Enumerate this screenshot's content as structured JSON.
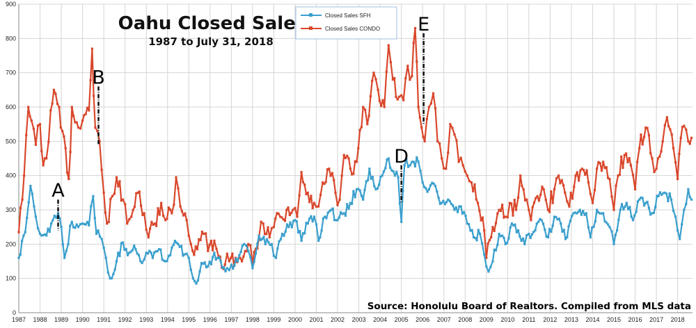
{
  "chart_data": {
    "type": "line",
    "title": "Oahu Closed Sales",
    "subtitle": "1987 to July 31, 2018",
    "source": "Source: Honolulu Board of Realtors. Compiled from MLS data",
    "ylim": [
      0,
      900
    ],
    "yticks": [
      "0",
      "100",
      "200",
      "300",
      "400",
      "500",
      "600",
      "700",
      "800",
      "900"
    ],
    "xlim": [
      1987,
      2018.7
    ],
    "xticks": [
      "1987",
      "1988",
      "1989",
      "1990",
      "1991",
      "1992",
      "1993",
      "1994",
      "1995",
      "1996",
      "1997",
      "1998",
      "1999",
      "2000",
      "2001",
      "2002",
      "2003",
      "2004",
      "2005",
      "2006",
      "2007",
      "2008",
      "2009",
      "2010",
      "2011",
      "2012",
      "2013",
      "2014",
      "2015",
      "2016",
      "2017",
      "2018"
    ],
    "grid": true,
    "legend_position": "top-center",
    "colors": {
      "sfh": "#3a9fcd",
      "condo": "#d9472b",
      "grid": "#d4d4d4"
    },
    "series": [
      {
        "name": "Closed Sales SFH",
        "color": "#3a9fcd",
        "anchors": [
          [
            1987.0,
            160
          ],
          [
            1987.3,
            235
          ],
          [
            1987.55,
            370
          ],
          [
            1987.8,
            280
          ],
          [
            1988.0,
            230
          ],
          [
            1988.3,
            225
          ],
          [
            1988.6,
            270
          ],
          [
            1988.85,
            290
          ],
          [
            1989.0,
            250
          ],
          [
            1989.15,
            160
          ],
          [
            1989.5,
            265
          ],
          [
            1989.8,
            250
          ],
          [
            1990.0,
            260
          ],
          [
            1990.3,
            255
          ],
          [
            1990.5,
            340
          ],
          [
            1990.65,
            230
          ],
          [
            1990.9,
            215
          ],
          [
            1991.1,
            160
          ],
          [
            1991.3,
            100
          ],
          [
            1991.6,
            150
          ],
          [
            1991.9,
            205
          ],
          [
            1992.2,
            175
          ],
          [
            1992.5,
            185
          ],
          [
            1992.8,
            145
          ],
          [
            1993.0,
            175
          ],
          [
            1993.3,
            160
          ],
          [
            1993.6,
            185
          ],
          [
            1993.9,
            150
          ],
          [
            1994.2,
            190
          ],
          [
            1994.5,
            200
          ],
          [
            1994.8,
            170
          ],
          [
            1995.0,
            160
          ],
          [
            1995.2,
            100
          ],
          [
            1995.35,
            85
          ],
          [
            1995.6,
            145
          ],
          [
            1995.9,
            135
          ],
          [
            1996.2,
            175
          ],
          [
            1996.5,
            150
          ],
          [
            1996.8,
            130
          ],
          [
            1997.0,
            140
          ],
          [
            1997.3,
            150
          ],
          [
            1997.6,
            200
          ],
          [
            1997.8,
            180
          ],
          [
            1998.0,
            130
          ],
          [
            1998.3,
            225
          ],
          [
            1998.6,
            200
          ],
          [
            1998.9,
            200
          ],
          [
            1999.1,
            160
          ],
          [
            1999.4,
            230
          ],
          [
            1999.7,
            250
          ],
          [
            2000.0,
            270
          ],
          [
            2000.3,
            210
          ],
          [
            2000.6,
            260
          ],
          [
            2000.9,
            280
          ],
          [
            2001.1,
            210
          ],
          [
            2001.4,
            280
          ],
          [
            2001.7,
            300
          ],
          [
            2002.0,
            270
          ],
          [
            2002.3,
            290
          ],
          [
            2002.6,
            320
          ],
          [
            2002.9,
            360
          ],
          [
            2003.2,
            330
          ],
          [
            2003.5,
            420
          ],
          [
            2003.8,
            360
          ],
          [
            2004.1,
            400
          ],
          [
            2004.4,
            450
          ],
          [
            2004.7,
            400
          ],
          [
            2004.85,
            395
          ],
          [
            2005.0,
            265
          ],
          [
            2005.15,
            430
          ],
          [
            2005.5,
            440
          ],
          [
            2005.8,
            440
          ],
          [
            2006.0,
            380
          ],
          [
            2006.3,
            360
          ],
          [
            2006.6,
            370
          ],
          [
            2006.9,
            320
          ],
          [
            2007.2,
            330
          ],
          [
            2007.5,
            300
          ],
          [
            2007.8,
            310
          ],
          [
            2008.1,
            260
          ],
          [
            2008.4,
            220
          ],
          [
            2008.7,
            230
          ],
          [
            2008.9,
            170
          ],
          [
            2009.1,
            120
          ],
          [
            2009.3,
            150
          ],
          [
            2009.6,
            230
          ],
          [
            2009.9,
            200
          ],
          [
            2010.2,
            260
          ],
          [
            2010.5,
            240
          ],
          [
            2010.8,
            200
          ],
          [
            2011.0,
            230
          ],
          [
            2011.3,
            240
          ],
          [
            2011.6,
            270
          ],
          [
            2011.9,
            220
          ],
          [
            2012.2,
            280
          ],
          [
            2012.5,
            260
          ],
          [
            2012.8,
            220
          ],
          [
            2013.1,
            290
          ],
          [
            2013.4,
            300
          ],
          [
            2013.7,
            290
          ],
          [
            2013.9,
            220
          ],
          [
            2014.2,
            300
          ],
          [
            2014.5,
            290
          ],
          [
            2014.8,
            250
          ],
          [
            2015.0,
            200
          ],
          [
            2015.3,
            300
          ],
          [
            2015.6,
            320
          ],
          [
            2015.9,
            270
          ],
          [
            2016.2,
            330
          ],
          [
            2016.5,
            320
          ],
          [
            2016.8,
            290
          ],
          [
            2017.1,
            340
          ],
          [
            2017.4,
            350
          ],
          [
            2017.7,
            330
          ],
          [
            2017.9,
            280
          ],
          [
            2018.0,
            240
          ],
          [
            2018.1,
            215
          ],
          [
            2018.3,
            300
          ],
          [
            2018.5,
            360
          ],
          [
            2018.65,
            330
          ]
        ]
      },
      {
        "name": "Closed Sales CONDO",
        "color": "#d9472b",
        "anchors": [
          [
            1987.0,
            235
          ],
          [
            1987.25,
            400
          ],
          [
            1987.45,
            600
          ],
          [
            1987.6,
            560
          ],
          [
            1987.8,
            490
          ],
          [
            1988.0,
            550
          ],
          [
            1988.15,
            430
          ],
          [
            1988.3,
            450
          ],
          [
            1988.5,
            590
          ],
          [
            1988.65,
            650
          ],
          [
            1988.9,
            600
          ],
          [
            1989.05,
            530
          ],
          [
            1989.2,
            480
          ],
          [
            1989.35,
            390
          ],
          [
            1989.5,
            600
          ],
          [
            1989.8,
            540
          ],
          [
            1990.0,
            560
          ],
          [
            1990.3,
            590
          ],
          [
            1990.45,
            770
          ],
          [
            1990.6,
            540
          ],
          [
            1990.8,
            500
          ],
          [
            1991.0,
            350
          ],
          [
            1991.15,
            260
          ],
          [
            1991.4,
            340
          ],
          [
            1991.6,
            395
          ],
          [
            1991.9,
            330
          ],
          [
            1992.1,
            260
          ],
          [
            1992.3,
            280
          ],
          [
            1992.6,
            350
          ],
          [
            1992.9,
            290
          ],
          [
            1993.1,
            220
          ],
          [
            1993.4,
            260
          ],
          [
            1993.7,
            320
          ],
          [
            1993.9,
            270
          ],
          [
            1994.2,
            290
          ],
          [
            1994.4,
            395
          ],
          [
            1994.6,
            310
          ],
          [
            1994.9,
            270
          ],
          [
            1995.1,
            200
          ],
          [
            1995.4,
            185
          ],
          [
            1995.7,
            230
          ],
          [
            1995.9,
            180
          ],
          [
            1996.2,
            210
          ],
          [
            1996.4,
            165
          ],
          [
            1996.7,
            140
          ],
          [
            1996.9,
            150
          ],
          [
            1997.2,
            160
          ],
          [
            1997.5,
            150
          ],
          [
            1997.8,
            200
          ],
          [
            1998.0,
            140
          ],
          [
            1998.3,
            220
          ],
          [
            1998.5,
            260
          ],
          [
            1998.8,
            220
          ],
          [
            1999.0,
            250
          ],
          [
            1999.3,
            280
          ],
          [
            1999.6,
            300
          ],
          [
            1999.9,
            300
          ],
          [
            2000.1,
            280
          ],
          [
            2000.3,
            410
          ],
          [
            2000.6,
            350
          ],
          [
            2000.9,
            320
          ],
          [
            2001.1,
            310
          ],
          [
            2001.3,
            380
          ],
          [
            2001.6,
            420
          ],
          [
            2001.9,
            350
          ],
          [
            2002.1,
            330
          ],
          [
            2002.3,
            460
          ],
          [
            2002.6,
            420
          ],
          [
            2002.9,
            440
          ],
          [
            2003.2,
            600
          ],
          [
            2003.4,
            550
          ],
          [
            2003.7,
            700
          ],
          [
            2003.9,
            650
          ],
          [
            2004.2,
            600
          ],
          [
            2004.4,
            780
          ],
          [
            2004.6,
            680
          ],
          [
            2004.9,
            630
          ],
          [
            2005.1,
            620
          ],
          [
            2005.3,
            720
          ],
          [
            2005.5,
            690
          ],
          [
            2005.65,
            830
          ],
          [
            2005.8,
            600
          ],
          [
            2005.95,
            540
          ],
          [
            2006.1,
            500
          ],
          [
            2006.3,
            600
          ],
          [
            2006.5,
            640
          ],
          [
            2006.7,
            500
          ],
          [
            2006.9,
            450
          ],
          [
            2007.1,
            420
          ],
          [
            2007.3,
            550
          ],
          [
            2007.5,
            520
          ],
          [
            2007.7,
            440
          ],
          [
            2007.9,
            430
          ],
          [
            2008.1,
            400
          ],
          [
            2008.3,
            380
          ],
          [
            2008.6,
            320
          ],
          [
            2008.9,
            240
          ],
          [
            2009.0,
            160
          ],
          [
            2009.3,
            250
          ],
          [
            2009.6,
            300
          ],
          [
            2009.9,
            280
          ],
          [
            2010.1,
            320
          ],
          [
            2010.4,
            300
          ],
          [
            2010.6,
            400
          ],
          [
            2010.9,
            330
          ],
          [
            2011.1,
            270
          ],
          [
            2011.4,
            340
          ],
          [
            2011.7,
            360
          ],
          [
            2011.9,
            300
          ],
          [
            2012.2,
            360
          ],
          [
            2012.4,
            400
          ],
          [
            2012.7,
            350
          ],
          [
            2012.9,
            310
          ],
          [
            2013.2,
            400
          ],
          [
            2013.5,
            420
          ],
          [
            2013.8,
            380
          ],
          [
            2014.0,
            320
          ],
          [
            2014.2,
            420
          ],
          [
            2014.5,
            440
          ],
          [
            2014.8,
            390
          ],
          [
            2015.0,
            300
          ],
          [
            2015.2,
            400
          ],
          [
            2015.5,
            460
          ],
          [
            2015.8,
            430
          ],
          [
            2016.0,
            360
          ],
          [
            2016.2,
            480
          ],
          [
            2016.5,
            540
          ],
          [
            2016.8,
            450
          ],
          [
            2017.0,
            420
          ],
          [
            2017.3,
            500
          ],
          [
            2017.5,
            570
          ],
          [
            2017.8,
            480
          ],
          [
            2018.0,
            390
          ],
          [
            2018.15,
            510
          ],
          [
            2018.3,
            545
          ],
          [
            2018.5,
            500
          ],
          [
            2018.65,
            510
          ]
        ]
      }
    ],
    "annotations": [
      {
        "label": "A",
        "x": 1988.85,
        "y_top": 330,
        "y_bottom": 240
      },
      {
        "label": "B",
        "x": 1990.75,
        "y_top": 660,
        "y_bottom": 490
      },
      {
        "label": "D",
        "x": 2005.0,
        "y_top": 430,
        "y_bottom": 320
      },
      {
        "label": "E",
        "x": 2006.05,
        "y_top": 815,
        "y_bottom": 550
      }
    ]
  }
}
